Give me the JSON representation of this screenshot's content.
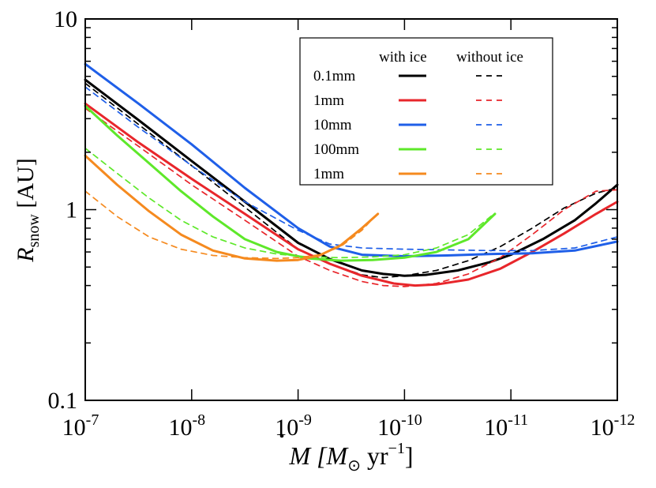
{
  "chart_data": {
    "type": "line",
    "title": "",
    "xlabel": {
      "symbol": "M",
      "mid": " [M",
      "sub": "⊙",
      "unit": " yr",
      "exp": "−1",
      "close": "]"
    },
    "ylabel": {
      "symbol": "R",
      "sub": "snow",
      "unit": " [AU]"
    },
    "x_scale": "log",
    "x_reversed": true,
    "xlim": [
      -7,
      -12
    ],
    "y_scale": "log",
    "ylim": [
      -1,
      1
    ],
    "x_ticks": [
      {
        "base": "10",
        "exp": "-7",
        "value": -7
      },
      {
        "base": "10",
        "exp": "-8",
        "value": -8
      },
      {
        "base": "10",
        "exp": "-9",
        "value": -9
      },
      {
        "base": "10",
        "exp": "-10",
        "value": -10
      },
      {
        "base": "10",
        "exp": "-11",
        "value": -11
      },
      {
        "base": "10",
        "exp": "-12",
        "value": -12
      }
    ],
    "y_ticks": [
      {
        "label": "10",
        "value": 1
      },
      {
        "label": "1",
        "value": 0
      },
      {
        "label": "0.1",
        "value": -1
      }
    ],
    "legend": {
      "position": "top-right",
      "header_with": "with ice",
      "header_without": "without ice",
      "entries": [
        "0.1mm",
        "1mm",
        "10mm",
        "100mm",
        "1mm"
      ]
    },
    "series": [
      {
        "name": "0.1mm",
        "variant": "with ice",
        "color": "#000000",
        "dash": false,
        "x": [
          -7.0,
          -7.5,
          -8.0,
          -8.5,
          -9.0,
          -9.3,
          -9.6,
          -9.8,
          -10.0,
          -10.2,
          -10.5,
          -10.8,
          -11.0,
          -11.3,
          -11.6,
          -11.8,
          -12.0
        ],
        "y": [
          4.8,
          2.95,
          1.8,
          1.1,
          0.67,
          0.55,
          0.48,
          0.46,
          0.45,
          0.455,
          0.48,
          0.53,
          0.58,
          0.7,
          0.88,
          1.08,
          1.35
        ]
      },
      {
        "name": "0.1mm",
        "variant": "without ice",
        "color": "#000000",
        "dash": true,
        "x": [
          -7.0,
          -7.5,
          -8.0,
          -8.5,
          -9.0,
          -9.3,
          -9.6,
          -9.8,
          -10.0,
          -10.3,
          -10.6,
          -10.9,
          -11.2,
          -11.5,
          -11.8,
          -12.0
        ],
        "y": [
          4.6,
          2.8,
          1.7,
          1.03,
          0.62,
          0.52,
          0.455,
          0.44,
          0.45,
          0.48,
          0.54,
          0.64,
          0.8,
          1.02,
          1.22,
          1.3
        ]
      },
      {
        "name": "1mm",
        "variant": "with ice",
        "color": "#e8262b",
        "dash": false,
        "x": [
          -7.0,
          -7.5,
          -8.0,
          -8.5,
          -9.0,
          -9.3,
          -9.6,
          -9.9,
          -10.1,
          -10.3,
          -10.6,
          -10.9,
          -11.2,
          -11.5,
          -11.8,
          -12.0
        ],
        "y": [
          3.6,
          2.25,
          1.45,
          0.95,
          0.62,
          0.52,
          0.45,
          0.41,
          0.4,
          0.405,
          0.43,
          0.49,
          0.6,
          0.75,
          0.95,
          1.1
        ]
      },
      {
        "name": "1mm",
        "variant": "without ice",
        "color": "#e8262b",
        "dash": true,
        "x": [
          -7.0,
          -7.5,
          -8.0,
          -8.5,
          -9.0,
          -9.3,
          -9.6,
          -9.8,
          -10.0,
          -10.3,
          -10.6,
          -10.9,
          -11.2,
          -11.5,
          -11.8,
          -12.0
        ],
        "y": [
          3.4,
          2.15,
          1.35,
          0.88,
          0.57,
          0.48,
          0.42,
          0.4,
          0.395,
          0.41,
          0.46,
          0.56,
          0.74,
          1.0,
          1.25,
          1.27
        ]
      },
      {
        "name": "10mm",
        "variant": "with ice",
        "color": "#1f5fe8",
        "dash": false,
        "x": [
          -7.0,
          -7.5,
          -8.0,
          -8.5,
          -9.0,
          -9.3,
          -9.6,
          -10.0,
          -10.4,
          -10.8,
          -11.2,
          -11.6,
          -12.0
        ],
        "y": [
          5.8,
          3.6,
          2.2,
          1.3,
          0.8,
          0.64,
          0.58,
          0.57,
          0.575,
          0.585,
          0.59,
          0.61,
          0.68
        ]
      },
      {
        "name": "10mm",
        "variant": "without ice",
        "color": "#1f5fe8",
        "dash": true,
        "x": [
          -7.0,
          -7.5,
          -8.0,
          -8.5,
          -9.0,
          -9.3,
          -9.6,
          -10.0,
          -10.4,
          -10.8,
          -11.2,
          -11.6,
          -12.0
        ],
        "y": [
          4.4,
          2.7,
          1.7,
          1.1,
          0.78,
          0.66,
          0.63,
          0.62,
          0.615,
          0.61,
          0.61,
          0.63,
          0.72
        ]
      },
      {
        "name": "100mm",
        "variant": "with ice",
        "color": "#5ee82a",
        "dash": false,
        "x": [
          -7.0,
          -7.3,
          -7.6,
          -7.9,
          -8.2,
          -8.5,
          -8.8,
          -9.1,
          -9.4,
          -9.7,
          -10.0,
          -10.3,
          -10.6,
          -10.85
        ],
        "y": [
          3.5,
          2.45,
          1.75,
          1.25,
          0.92,
          0.7,
          0.6,
          0.555,
          0.54,
          0.545,
          0.56,
          0.6,
          0.7,
          0.95
        ]
      },
      {
        "name": "100mm",
        "variant": "without ice",
        "color": "#5ee82a",
        "dash": true,
        "x": [
          -7.0,
          -7.3,
          -7.6,
          -7.9,
          -8.2,
          -8.5,
          -8.8,
          -9.1,
          -9.4,
          -9.7,
          -10.0,
          -10.3,
          -10.6,
          -10.82
        ],
        "y": [
          2.1,
          1.55,
          1.15,
          0.88,
          0.72,
          0.63,
          0.585,
          0.565,
          0.56,
          0.565,
          0.58,
          0.63,
          0.74,
          0.93
        ]
      },
      {
        "name": "1mm",
        "variant": "with ice",
        "color": "#f58a1f",
        "dash": false,
        "x": [
          -7.0,
          -7.3,
          -7.6,
          -7.9,
          -8.2,
          -8.5,
          -8.8,
          -9.0,
          -9.2,
          -9.4,
          -9.6,
          -9.75
        ],
        "y": [
          1.92,
          1.35,
          0.98,
          0.74,
          0.61,
          0.555,
          0.54,
          0.545,
          0.575,
          0.65,
          0.8,
          0.95
        ]
      },
      {
        "name": "1mm",
        "variant": "without ice",
        "color": "#f58a1f",
        "dash": true,
        "x": [
          -7.0,
          -7.3,
          -7.6,
          -7.9,
          -8.2,
          -8.5,
          -8.8,
          -9.0,
          -9.2,
          -9.4,
          -9.6,
          -9.72
        ],
        "y": [
          1.25,
          0.92,
          0.72,
          0.62,
          0.575,
          0.56,
          0.555,
          0.56,
          0.58,
          0.64,
          0.78,
          0.92
        ]
      }
    ]
  },
  "colors": {
    "black": "#000000",
    "red": "#e8262b",
    "blue": "#1f5fe8",
    "green": "#5ee82a",
    "orange": "#f58a1f"
  }
}
